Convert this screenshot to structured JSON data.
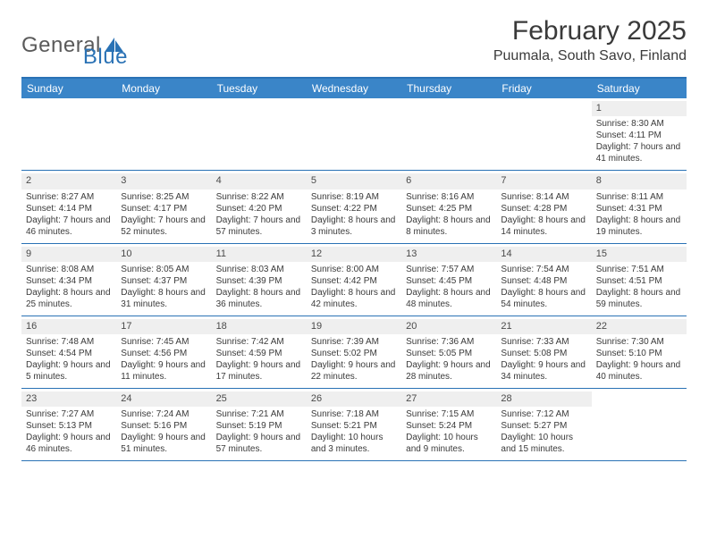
{
  "logo": {
    "word1": "General",
    "word2": "Blue"
  },
  "title": "February 2025",
  "location": "Puumala, South Savo, Finland",
  "colors": {
    "accent": "#3a85c8",
    "accent_dark": "#2a72b5",
    "row_band": "#efefef",
    "text": "#3a3a3a",
    "background": "#ffffff"
  },
  "day_names": [
    "Sunday",
    "Monday",
    "Tuesday",
    "Wednesday",
    "Thursday",
    "Friday",
    "Saturday"
  ],
  "weeks": [
    [
      null,
      null,
      null,
      null,
      null,
      null,
      {
        "n": "1",
        "sunrise": "Sunrise: 8:30 AM",
        "sunset": "Sunset: 4:11 PM",
        "daylight": "Daylight: 7 hours and 41 minutes."
      }
    ],
    [
      {
        "n": "2",
        "sunrise": "Sunrise: 8:27 AM",
        "sunset": "Sunset: 4:14 PM",
        "daylight": "Daylight: 7 hours and 46 minutes."
      },
      {
        "n": "3",
        "sunrise": "Sunrise: 8:25 AM",
        "sunset": "Sunset: 4:17 PM",
        "daylight": "Daylight: 7 hours and 52 minutes."
      },
      {
        "n": "4",
        "sunrise": "Sunrise: 8:22 AM",
        "sunset": "Sunset: 4:20 PM",
        "daylight": "Daylight: 7 hours and 57 minutes."
      },
      {
        "n": "5",
        "sunrise": "Sunrise: 8:19 AM",
        "sunset": "Sunset: 4:22 PM",
        "daylight": "Daylight: 8 hours and 3 minutes."
      },
      {
        "n": "6",
        "sunrise": "Sunrise: 8:16 AM",
        "sunset": "Sunset: 4:25 PM",
        "daylight": "Daylight: 8 hours and 8 minutes."
      },
      {
        "n": "7",
        "sunrise": "Sunrise: 8:14 AM",
        "sunset": "Sunset: 4:28 PM",
        "daylight": "Daylight: 8 hours and 14 minutes."
      },
      {
        "n": "8",
        "sunrise": "Sunrise: 8:11 AM",
        "sunset": "Sunset: 4:31 PM",
        "daylight": "Daylight: 8 hours and 19 minutes."
      }
    ],
    [
      {
        "n": "9",
        "sunrise": "Sunrise: 8:08 AM",
        "sunset": "Sunset: 4:34 PM",
        "daylight": "Daylight: 8 hours and 25 minutes."
      },
      {
        "n": "10",
        "sunrise": "Sunrise: 8:05 AM",
        "sunset": "Sunset: 4:37 PM",
        "daylight": "Daylight: 8 hours and 31 minutes."
      },
      {
        "n": "11",
        "sunrise": "Sunrise: 8:03 AM",
        "sunset": "Sunset: 4:39 PM",
        "daylight": "Daylight: 8 hours and 36 minutes."
      },
      {
        "n": "12",
        "sunrise": "Sunrise: 8:00 AM",
        "sunset": "Sunset: 4:42 PM",
        "daylight": "Daylight: 8 hours and 42 minutes."
      },
      {
        "n": "13",
        "sunrise": "Sunrise: 7:57 AM",
        "sunset": "Sunset: 4:45 PM",
        "daylight": "Daylight: 8 hours and 48 minutes."
      },
      {
        "n": "14",
        "sunrise": "Sunrise: 7:54 AM",
        "sunset": "Sunset: 4:48 PM",
        "daylight": "Daylight: 8 hours and 54 minutes."
      },
      {
        "n": "15",
        "sunrise": "Sunrise: 7:51 AM",
        "sunset": "Sunset: 4:51 PM",
        "daylight": "Daylight: 8 hours and 59 minutes."
      }
    ],
    [
      {
        "n": "16",
        "sunrise": "Sunrise: 7:48 AM",
        "sunset": "Sunset: 4:54 PM",
        "daylight": "Daylight: 9 hours and 5 minutes."
      },
      {
        "n": "17",
        "sunrise": "Sunrise: 7:45 AM",
        "sunset": "Sunset: 4:56 PM",
        "daylight": "Daylight: 9 hours and 11 minutes."
      },
      {
        "n": "18",
        "sunrise": "Sunrise: 7:42 AM",
        "sunset": "Sunset: 4:59 PM",
        "daylight": "Daylight: 9 hours and 17 minutes."
      },
      {
        "n": "19",
        "sunrise": "Sunrise: 7:39 AM",
        "sunset": "Sunset: 5:02 PM",
        "daylight": "Daylight: 9 hours and 22 minutes."
      },
      {
        "n": "20",
        "sunrise": "Sunrise: 7:36 AM",
        "sunset": "Sunset: 5:05 PM",
        "daylight": "Daylight: 9 hours and 28 minutes."
      },
      {
        "n": "21",
        "sunrise": "Sunrise: 7:33 AM",
        "sunset": "Sunset: 5:08 PM",
        "daylight": "Daylight: 9 hours and 34 minutes."
      },
      {
        "n": "22",
        "sunrise": "Sunrise: 7:30 AM",
        "sunset": "Sunset: 5:10 PM",
        "daylight": "Daylight: 9 hours and 40 minutes."
      }
    ],
    [
      {
        "n": "23",
        "sunrise": "Sunrise: 7:27 AM",
        "sunset": "Sunset: 5:13 PM",
        "daylight": "Daylight: 9 hours and 46 minutes."
      },
      {
        "n": "24",
        "sunrise": "Sunrise: 7:24 AM",
        "sunset": "Sunset: 5:16 PM",
        "daylight": "Daylight: 9 hours and 51 minutes."
      },
      {
        "n": "25",
        "sunrise": "Sunrise: 7:21 AM",
        "sunset": "Sunset: 5:19 PM",
        "daylight": "Daylight: 9 hours and 57 minutes."
      },
      {
        "n": "26",
        "sunrise": "Sunrise: 7:18 AM",
        "sunset": "Sunset: 5:21 PM",
        "daylight": "Daylight: 10 hours and 3 minutes."
      },
      {
        "n": "27",
        "sunrise": "Sunrise: 7:15 AM",
        "sunset": "Sunset: 5:24 PM",
        "daylight": "Daylight: 10 hours and 9 minutes."
      },
      {
        "n": "28",
        "sunrise": "Sunrise: 7:12 AM",
        "sunset": "Sunset: 5:27 PM",
        "daylight": "Daylight: 10 hours and 15 minutes."
      },
      null
    ]
  ]
}
